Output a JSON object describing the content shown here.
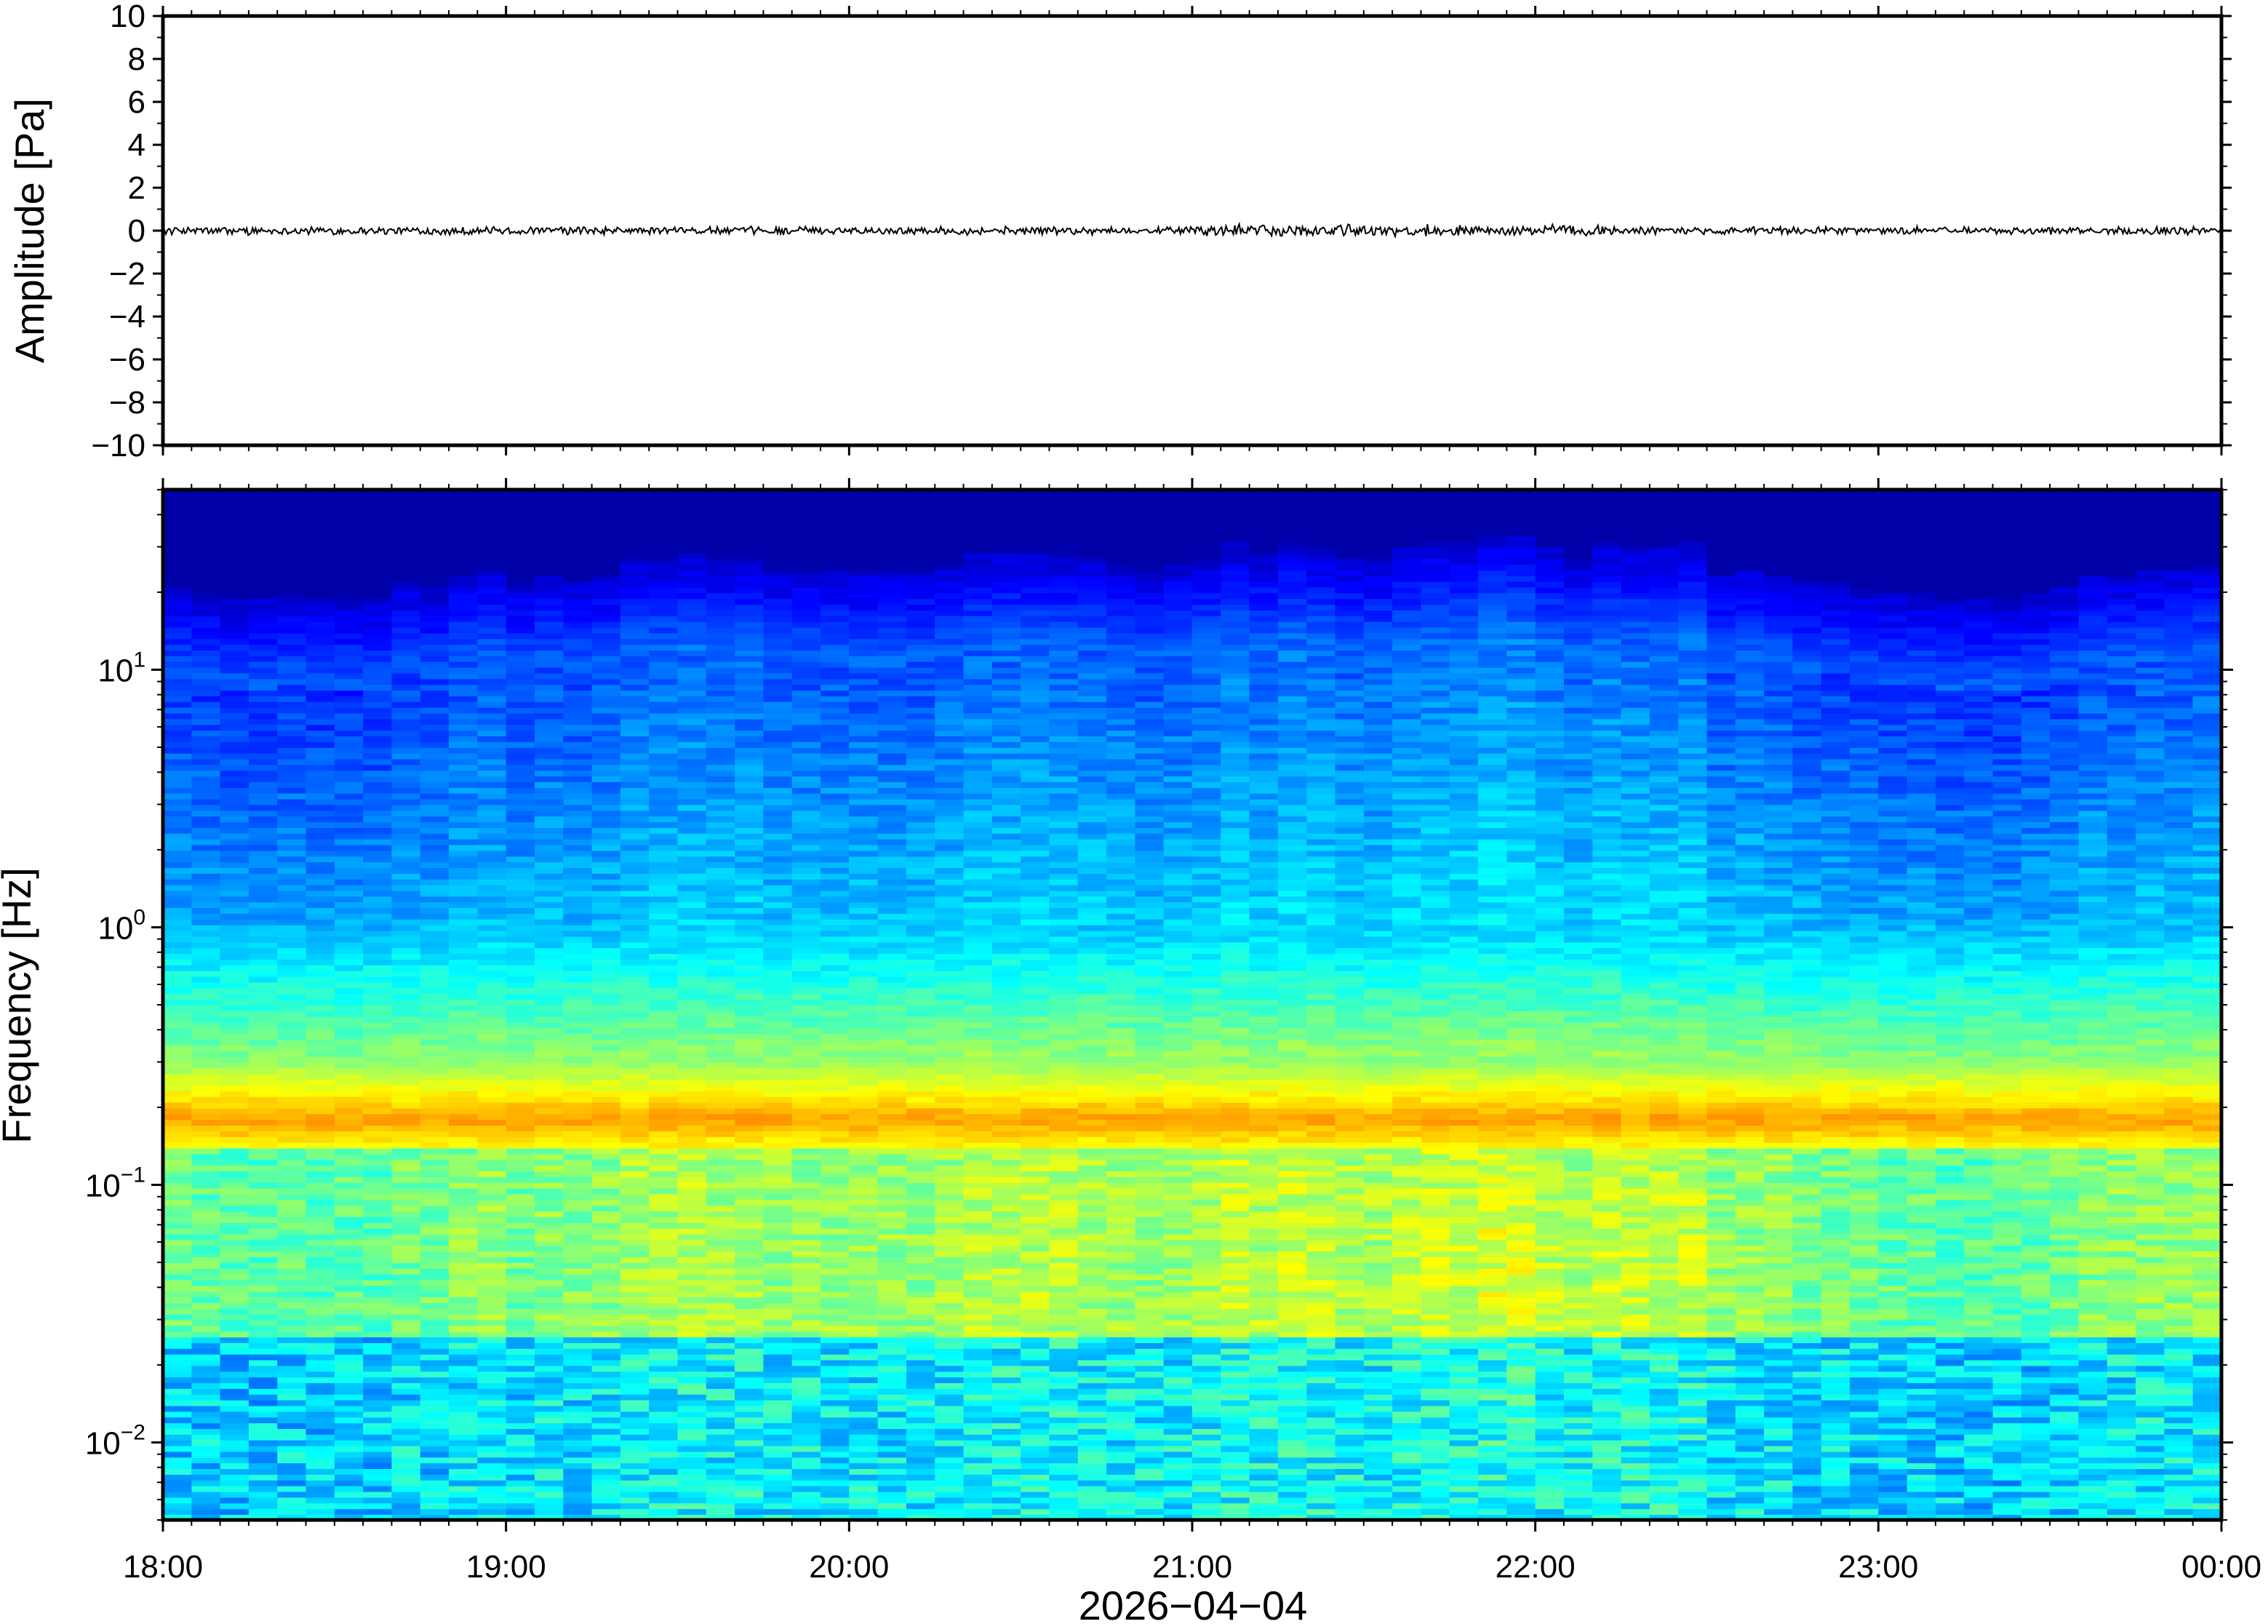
{
  "chart_data": [
    {
      "type": "line",
      "ylabel": "Amplitude [Pa]",
      "ylim": [
        -10,
        10
      ],
      "yticks": [
        10,
        8,
        6,
        4,
        2,
        0,
        -2,
        -4,
        -6,
        -8,
        -10
      ],
      "ytick_labels": [
        "10",
        "8",
        "6",
        "4",
        "2",
        "0",
        "−2",
        "−4",
        "−6",
        "−8",
        "−10"
      ],
      "xlim": [
        "18:00",
        "00:00"
      ],
      "trace_amplitude_approx": 0.15,
      "line_color": "#000000"
    },
    {
      "type": "heatmap",
      "ylabel": "Frequency [Hz]",
      "yscale": "log",
      "ylim": [
        0.005,
        50
      ],
      "yticks": [
        {
          "value": 10,
          "base": "10",
          "exp": "1"
        },
        {
          "value": 1,
          "base": "10",
          "exp": "0"
        },
        {
          "value": 0.1,
          "base": "10",
          "exp": "−1"
        },
        {
          "value": 0.01,
          "base": "10",
          "exp": "−2"
        }
      ],
      "xlabel": "2026−04−04",
      "xticks": [
        "18:00",
        "19:00",
        "20:00",
        "21:00",
        "22:00",
        "23:00",
        "00:00"
      ],
      "colormap": "jet",
      "n_time_bins": 72,
      "band_peak_frequency_hz": 0.18,
      "upper_frequency_cutoff_hz": [
        8,
        20
      ],
      "activity_profile": [
        0.15,
        0.1,
        0.05,
        0.05,
        0.1,
        0.05,
        0.05,
        0.05,
        0.2,
        0.15,
        0.3,
        0.35,
        0.2,
        0.3,
        0.25,
        0.3,
        0.45,
        0.45,
        0.5,
        0.45,
        0.45,
        0.35,
        0.35,
        0.35,
        0.35,
        0.35,
        0.35,
        0.4,
        0.5,
        0.5,
        0.5,
        0.5,
        0.45,
        0.4,
        0.35,
        0.4,
        0.45,
        0.6,
        0.5,
        0.6,
        0.55,
        0.45,
        0.45,
        0.55,
        0.6,
        0.6,
        0.7,
        0.7,
        0.55,
        0.45,
        0.6,
        0.55,
        0.55,
        0.6,
        0.3,
        0.35,
        0.3,
        0.2,
        0.2,
        0.15,
        0.1,
        0.1,
        0.05,
        0.05,
        0.05,
        0.1,
        0.15,
        0.3,
        0.3,
        0.35,
        0.35,
        0.4
      ]
    }
  ]
}
